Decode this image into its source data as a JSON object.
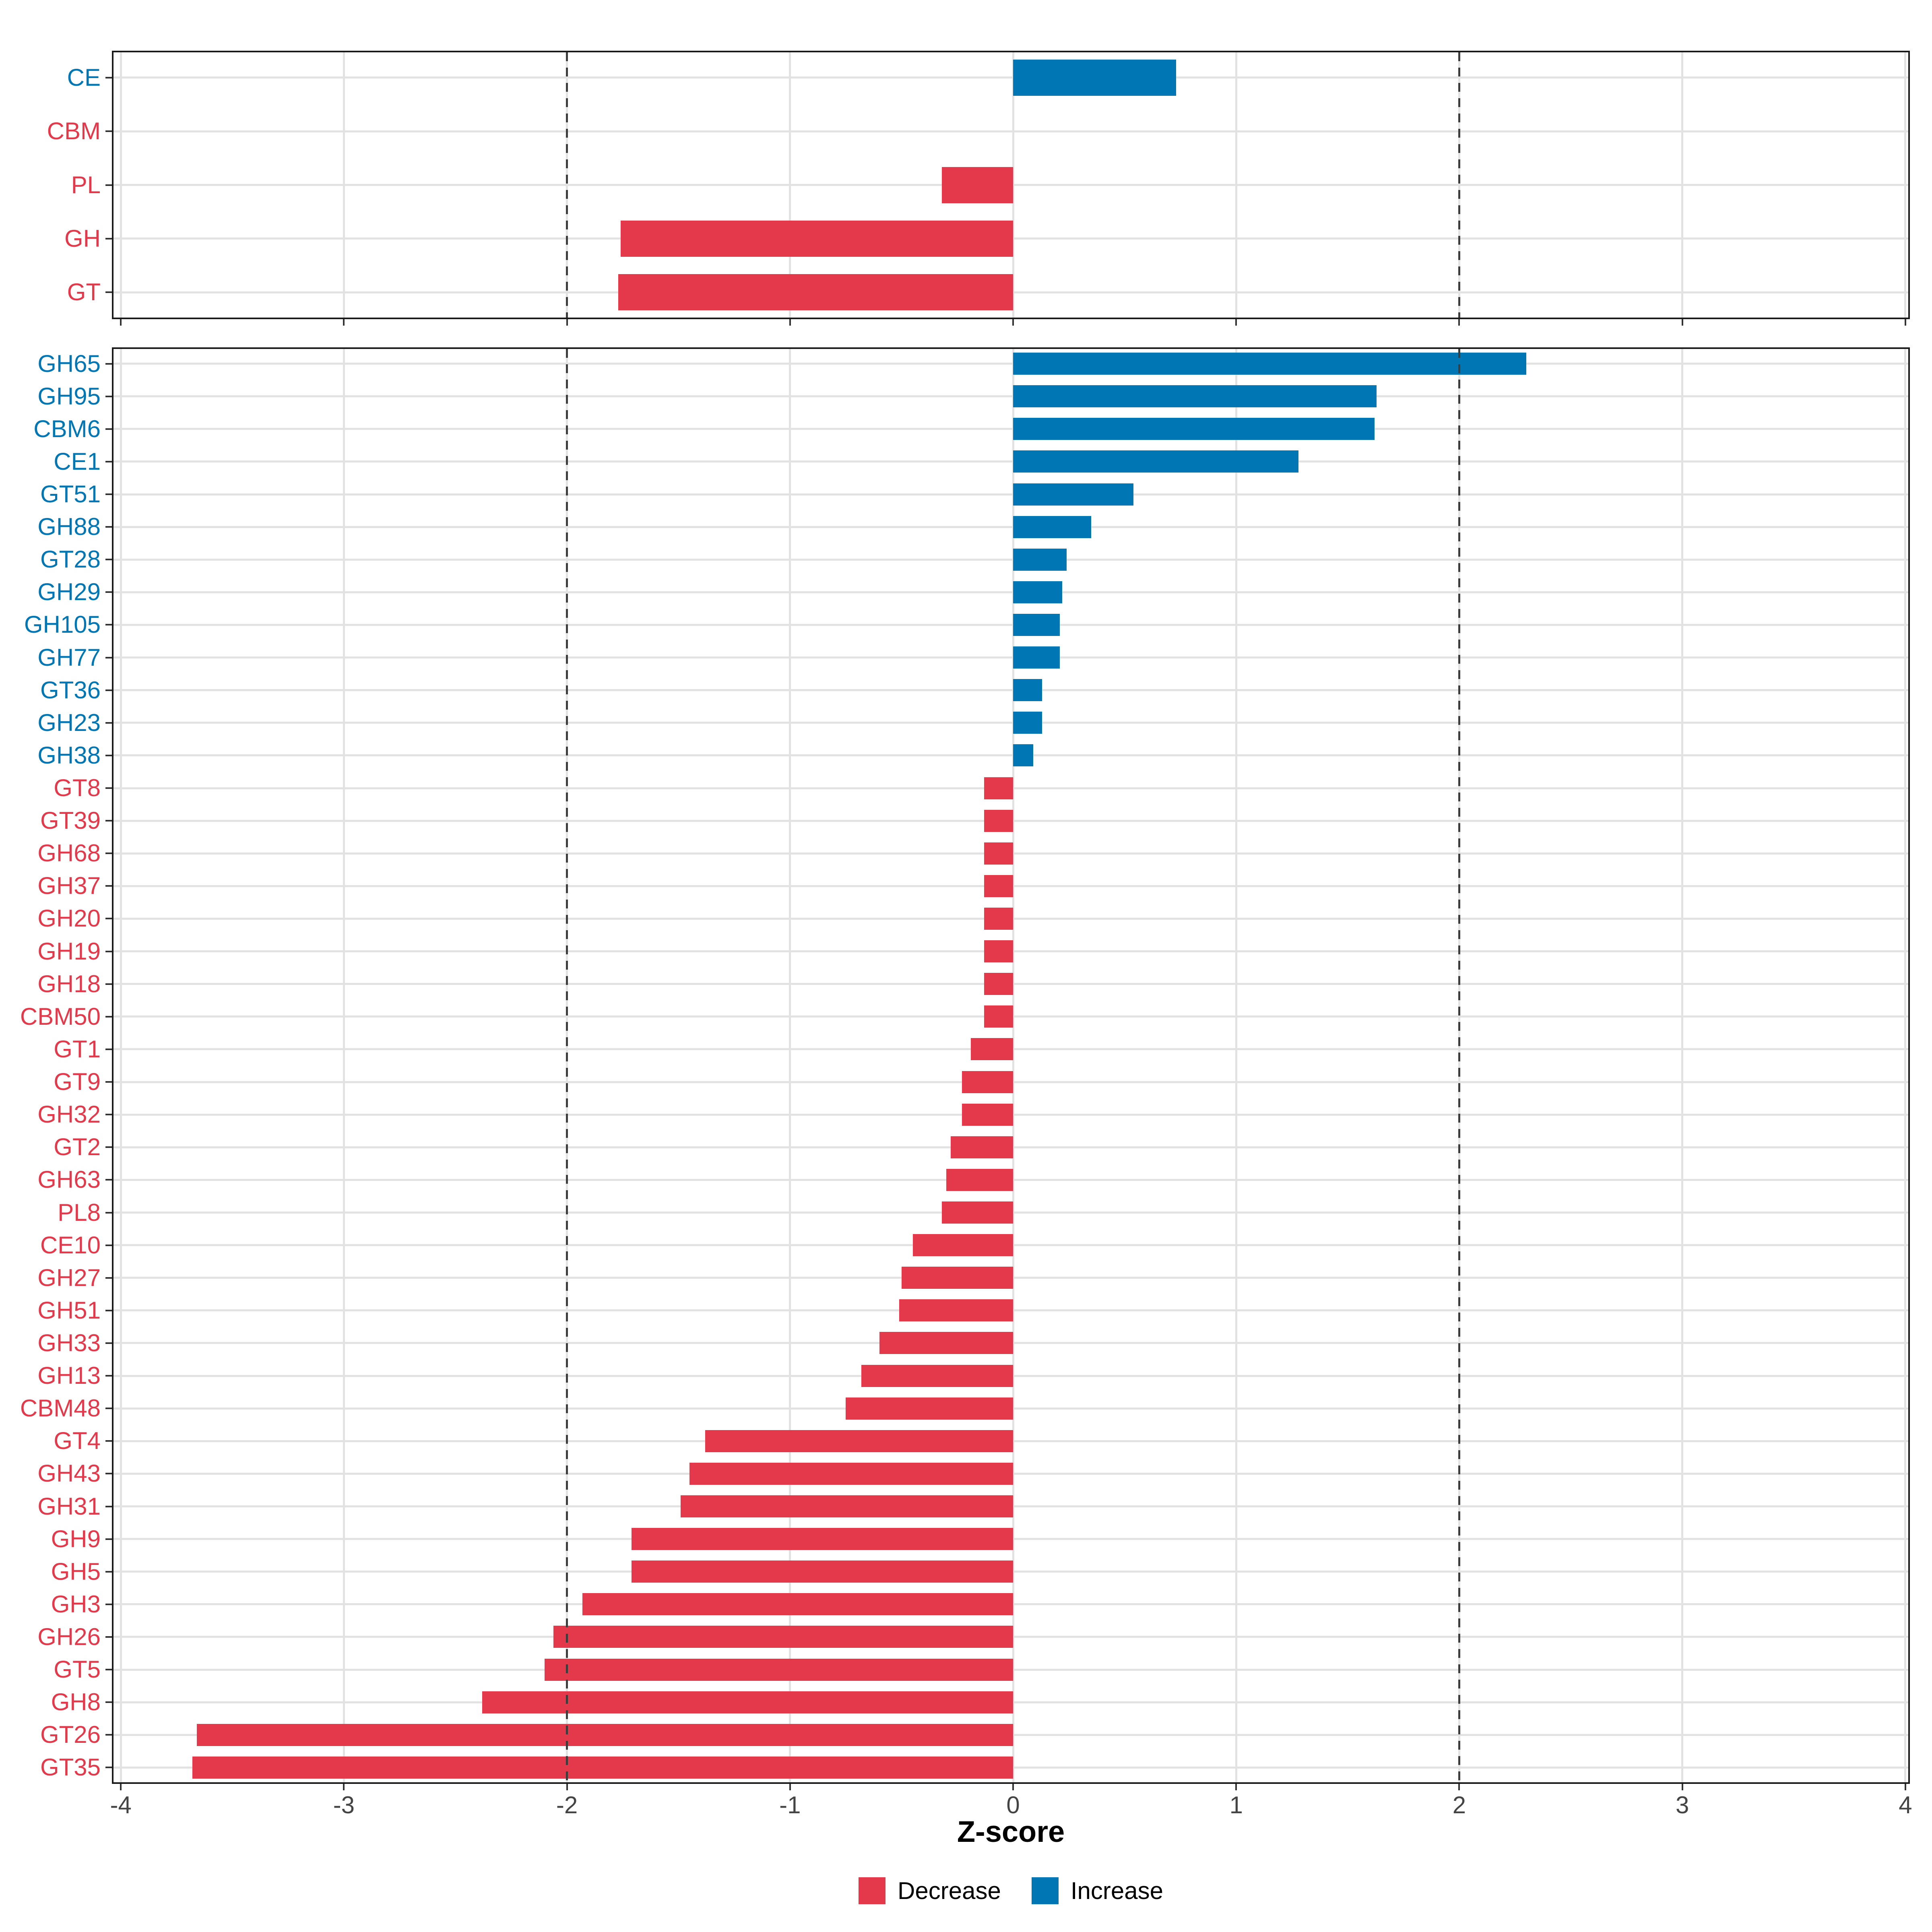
{
  "colors": {
    "increase": "#0076B4",
    "decrease": "#E4394B",
    "grid": "#E2E2E2",
    "reference_line": "#3D3D3D",
    "axis_text": "#444444",
    "panel_border": "#1A1A1A"
  },
  "legend": {
    "items": [
      {
        "label": "Decrease",
        "key": "decrease"
      },
      {
        "label": "Increase",
        "key": "increase"
      }
    ]
  },
  "chart_data": [
    {
      "id": "class-summary",
      "type": "bar",
      "orientation": "horizontal",
      "xlabel": "Z-score",
      "xlim": [
        -4,
        4
      ],
      "x_ticks": [
        -4,
        -3,
        -2,
        -1,
        0,
        1,
        2,
        3,
        4
      ],
      "x_tick_labels": [
        "-4",
        "-3",
        "-2",
        "-1",
        "0",
        "1",
        "2",
        "3",
        "4"
      ],
      "show_x_tick_labels": false,
      "reference_lines": [
        -2,
        2
      ],
      "grid": true,
      "categories": [
        "CE",
        "CBM",
        "PL",
        "GH",
        "GT"
      ],
      "values": [
        0.73,
        0,
        -0.32,
        -1.76,
        -1.77
      ],
      "directions": [
        "increase",
        "decrease",
        "decrease",
        "decrease",
        "decrease"
      ]
    },
    {
      "id": "family-detail",
      "type": "bar",
      "orientation": "horizontal",
      "xlabel": "Z-score",
      "xlim": [
        -4,
        4
      ],
      "x_ticks": [
        -4,
        -3,
        -2,
        -1,
        0,
        1,
        2,
        3,
        4
      ],
      "x_tick_labels": [
        "-4",
        "-3",
        "-2",
        "-1",
        "0",
        "1",
        "2",
        "3",
        "4"
      ],
      "show_x_tick_labels": true,
      "reference_lines": [
        -2,
        2
      ],
      "grid": true,
      "categories": [
        "GH65",
        "GH95",
        "CBM6",
        "CE1",
        "GT51",
        "GH88",
        "GT28",
        "GH29",
        "GH105",
        "GH77",
        "GT36",
        "GH23",
        "GH38",
        "GT8",
        "GT39",
        "GH68",
        "GH37",
        "GH20",
        "GH19",
        "GH18",
        "CBM50",
        "GT1",
        "GT9",
        "GH32",
        "GT2",
        "GH63",
        "PL8",
        "CE10",
        "GH27",
        "GH51",
        "GH33",
        "GH13",
        "CBM48",
        "GT4",
        "GH43",
        "GH31",
        "GH9",
        "GH5",
        "GH3",
        "GH26",
        "GT5",
        "GH8",
        "GT26",
        "GT35"
      ],
      "values": [
        2.3,
        1.63,
        1.62,
        1.28,
        0.54,
        0.35,
        0.24,
        0.22,
        0.21,
        0.21,
        0.13,
        0.13,
        0.09,
        -0.13,
        -0.13,
        -0.13,
        -0.13,
        -0.13,
        -0.13,
        -0.13,
        -0.13,
        -0.19,
        -0.23,
        -0.23,
        -0.28,
        -0.3,
        -0.32,
        -0.45,
        -0.5,
        -0.51,
        -0.6,
        -0.68,
        -0.75,
        -1.38,
        -1.45,
        -1.49,
        -1.71,
        -1.71,
        -1.93,
        -2.06,
        -2.1,
        -2.38,
        -3.66,
        -3.68
      ],
      "directions": [
        "increase",
        "increase",
        "increase",
        "increase",
        "increase",
        "increase",
        "increase",
        "increase",
        "increase",
        "increase",
        "increase",
        "increase",
        "increase",
        "decrease",
        "decrease",
        "decrease",
        "decrease",
        "decrease",
        "decrease",
        "decrease",
        "decrease",
        "decrease",
        "decrease",
        "decrease",
        "decrease",
        "decrease",
        "decrease",
        "decrease",
        "decrease",
        "decrease",
        "decrease",
        "decrease",
        "decrease",
        "decrease",
        "decrease",
        "decrease",
        "decrease",
        "decrease",
        "decrease",
        "decrease",
        "decrease",
        "decrease",
        "decrease",
        "decrease"
      ]
    }
  ]
}
